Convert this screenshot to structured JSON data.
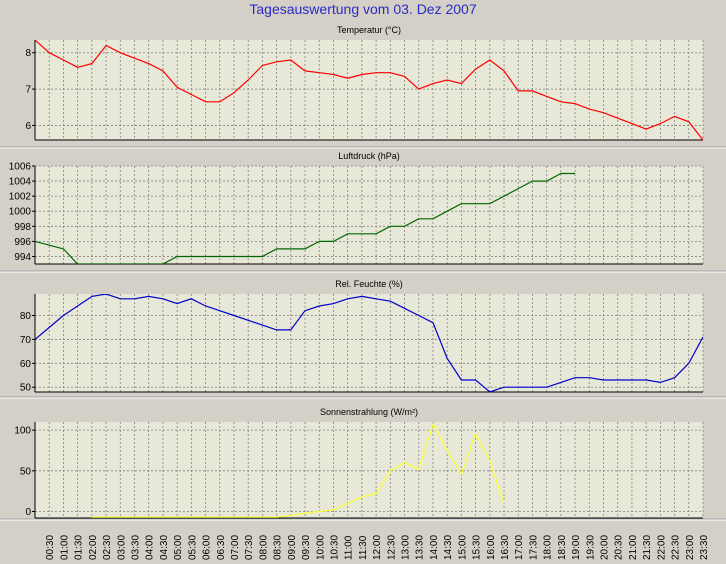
{
  "page_title": "Tagesauswertung vom 03. Dez 2007",
  "x_ticks": [
    "00:30",
    "01:00",
    "01:30",
    "02:00",
    "02:30",
    "03:00",
    "03:30",
    "04:00",
    "04:30",
    "05:00",
    "05:30",
    "06:00",
    "06:30",
    "07:00",
    "07:30",
    "08:00",
    "08:30",
    "09:00",
    "09:30",
    "10:00",
    "10:30",
    "11:00",
    "11:30",
    "12:00",
    "12:30",
    "13:00",
    "13:30",
    "14:00",
    "14:30",
    "15:00",
    "15:30",
    "16:00",
    "16:30",
    "17:00",
    "17:30",
    "18:00",
    "18:30",
    "19:00",
    "19:30",
    "20:00",
    "20:30",
    "21:00",
    "21:30",
    "22:00",
    "22:30",
    "23:00",
    "23:30"
  ],
  "chart_data": [
    {
      "type": "line",
      "title": "Temperatur (°C)",
      "color": "#ff0000",
      "ylim": [
        5.6,
        8.35
      ],
      "yticks": [
        6,
        7,
        8
      ],
      "grid": true,
      "x": [
        0,
        0.5,
        1,
        1.5,
        2,
        2.5,
        3,
        3.5,
        4,
        4.5,
        5,
        5.5,
        6,
        6.5,
        7,
        7.5,
        8,
        8.5,
        9,
        9.5,
        10,
        10.5,
        11,
        11.5,
        12,
        12.5,
        13,
        13.5,
        14,
        14.5,
        15,
        15.5,
        16,
        16.5,
        17,
        17.5,
        18,
        18.5,
        19,
        19.5,
        20,
        20.5,
        21,
        21.5,
        22,
        22.5,
        23,
        23.5
      ],
      "values": [
        8.35,
        8.0,
        7.8,
        7.6,
        7.7,
        8.2,
        8.0,
        7.85,
        7.7,
        7.5,
        7.05,
        6.85,
        6.65,
        6.65,
        6.9,
        7.25,
        7.65,
        7.75,
        7.8,
        7.5,
        7.45,
        7.4,
        7.3,
        7.4,
        7.45,
        7.45,
        7.35,
        7.0,
        7.15,
        7.25,
        7.15,
        7.55,
        7.8,
        7.5,
        6.95,
        6.95,
        6.8,
        6.65,
        6.6,
        6.45,
        6.35,
        6.2,
        6.05,
        5.9,
        6.05,
        6.25,
        6.1,
        5.6
      ]
    },
    {
      "type": "line",
      "title": "Luftdruck (hPa)",
      "color": "#006600",
      "ylim": [
        993,
        1006
      ],
      "yticks": [
        994,
        996,
        998,
        1000,
        1002,
        1004,
        1006
      ],
      "grid": true,
      "x": [
        0,
        1,
        1.5,
        2,
        2.5,
        3,
        3.5,
        4,
        4.5,
        5,
        5.5,
        6,
        6.5,
        7,
        7.5,
        8,
        8.5,
        9,
        9.5,
        10,
        10.5,
        11,
        11.5,
        12,
        12.5,
        13,
        13.5,
        14,
        14.5,
        15,
        15.5,
        16,
        16.5,
        17,
        17.5,
        18,
        18.5,
        19
      ],
      "values": [
        996,
        995,
        993,
        993,
        993,
        993,
        993,
        993,
        993,
        994,
        994,
        994,
        994,
        994,
        994,
        994,
        995,
        995,
        995,
        996,
        996,
        997,
        997,
        997,
        998,
        998,
        999,
        999,
        1000,
        1001,
        1001,
        1001,
        1002,
        1003,
        1004,
        1004,
        1005,
        1005
      ]
    },
    {
      "type": "line",
      "title": "Rel. Feuchte (%)",
      "color": "#0000cc",
      "ylim": [
        48,
        89
      ],
      "yticks": [
        50,
        60,
        70,
        80
      ],
      "grid": true,
      "x": [
        0,
        0.5,
        1,
        1.5,
        2,
        2.5,
        3,
        3.5,
        4,
        4.5,
        5,
        5.5,
        6,
        6.5,
        7,
        7.5,
        8,
        8.5,
        9,
        9.5,
        10,
        10.5,
        11,
        11.5,
        12,
        12.5,
        13,
        13.5,
        14,
        14.5,
        15,
        15.5,
        16,
        16.5,
        17,
        17.5,
        18,
        18.5,
        19,
        19.5,
        20,
        20.5,
        21,
        21.5,
        22,
        22.5,
        23,
        23.5
      ],
      "values": [
        70,
        75,
        80,
        84,
        88,
        89,
        87,
        87,
        88,
        87,
        85,
        87,
        84,
        82,
        80,
        78,
        76,
        74,
        74,
        82,
        84,
        85,
        87,
        88,
        87,
        86,
        83,
        80,
        77,
        62,
        53,
        53,
        48,
        50,
        50,
        50,
        50,
        52,
        54,
        54,
        53,
        53,
        53,
        53,
        52,
        54,
        60,
        71
      ]
    },
    {
      "type": "line",
      "title": "Sonnenstrahlung (W/m²)",
      "color": "#ffff33",
      "ylim": [
        -8,
        110
      ],
      "yticks": [
        0,
        50,
        100
      ],
      "grid": true,
      "x": [
        2,
        2.5,
        3,
        3.5,
        4,
        4.5,
        5,
        5.5,
        6,
        6.5,
        7,
        7.5,
        8,
        8.5,
        9,
        9.5,
        10,
        10.5,
        11,
        11.5,
        12,
        12.5,
        13,
        13.5,
        14,
        14.5,
        15,
        15.5,
        16,
        16.5
      ],
      "values": [
        -7,
        -7,
        -7,
        -7,
        -7,
        -7,
        -7,
        -7,
        -7,
        -7,
        -7,
        -7,
        -7,
        -7,
        -5,
        -2,
        0,
        2,
        10,
        18,
        22,
        50,
        60,
        52,
        107,
        75,
        46,
        96,
        62,
        10
      ]
    }
  ]
}
